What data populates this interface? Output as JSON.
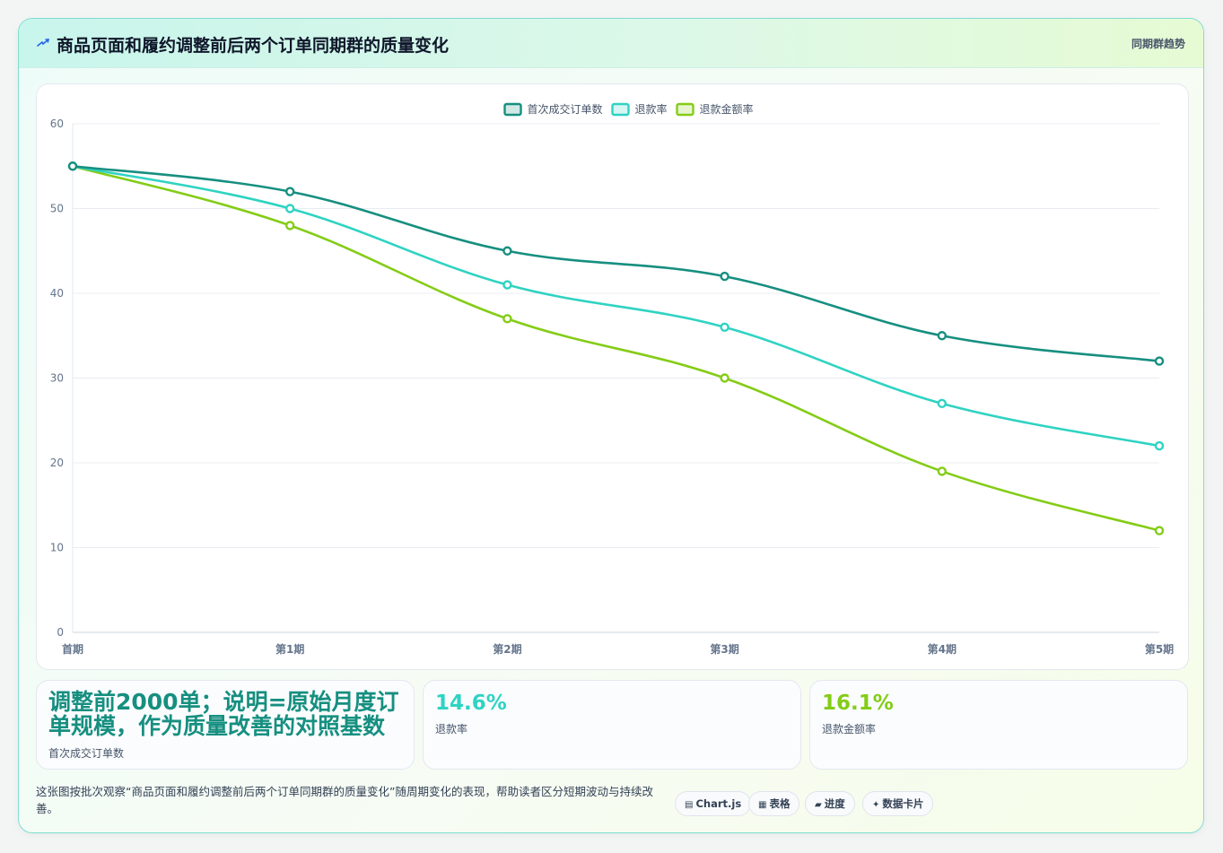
{
  "header": {
    "title": "商品页面和履约调整前后两个订单同期群的质量变化",
    "tag": "同期群趋势"
  },
  "chart_data": {
    "type": "line",
    "categories": [
      "首期",
      "第1期",
      "第2期",
      "第3期",
      "第4期",
      "第5期"
    ],
    "ylim": [
      0,
      60
    ],
    "yticks": [
      0,
      10,
      20,
      30,
      40,
      50,
      60
    ],
    "grid": true,
    "legend_position": "top-center",
    "series": [
      {
        "name": "首次成交订单数",
        "color": "#168f80",
        "values": [
          55,
          52,
          45,
          42,
          35,
          32
        ]
      },
      {
        "name": "退款率",
        "color": "#2fd3c2",
        "values": [
          55,
          50,
          41,
          36,
          27,
          22
        ]
      },
      {
        "name": "退款金额率",
        "color": "#84cc16",
        "values": [
          55,
          48,
          37,
          30,
          19,
          12
        ]
      }
    ]
  },
  "stats": [
    {
      "value": "调整前2000单；说明=原始月度订单规模，作为质量改善的对照基数",
      "label": "首次成交订单数",
      "color": "#168f80"
    },
    {
      "value": "14.6%",
      "label": "退款率",
      "color": "#2fd3c2"
    },
    {
      "value": "16.1%",
      "label": "退款金额率",
      "color": "#84cc16"
    }
  ],
  "footer": {
    "description": "这张图按批次观察“商品页面和履约调整前后两个订单同期群的质量变化”随周期变化的表现，帮助读者区分短期波动与持续改善。"
  },
  "pills": [
    {
      "icon": "chart-icon",
      "glyph": "▤",
      "label": "Chart.js"
    },
    {
      "icon": "table-icon",
      "glyph": "▦",
      "label": "表格"
    },
    {
      "icon": "progress-icon",
      "glyph": "▰",
      "label": "进度"
    },
    {
      "icon": "sparkle-icon",
      "glyph": "✦",
      "label": "数据卡片"
    }
  ]
}
